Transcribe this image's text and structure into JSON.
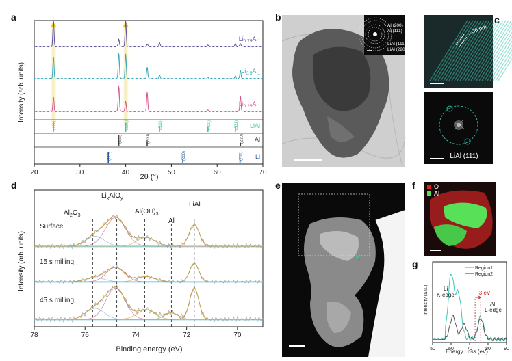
{
  "panel_letters": {
    "a": "a",
    "b": "b",
    "c": "c",
    "d": "d",
    "e": "e",
    "f": "f",
    "g": "g"
  },
  "colors": {
    "li075": "#5a4d9c",
    "li05": "#3aa6b6",
    "li025": "#d4548a",
    "lial_ref": "#45c2a9",
    "al_ref": "#444444",
    "li_ref": "#2a5d9a",
    "highlight": "#f6e9a6",
    "xps_fit": "#c9a24a"
  },
  "chart_data": [
    {
      "id": "a",
      "type": "line",
      "title": "",
      "xlabel": "2θ (°)",
      "ylabel": "Intensity (arb. units)",
      "xlim": [
        20,
        70
      ],
      "xticks": [
        "20",
        "30",
        "40",
        "50",
        "60",
        "70"
      ],
      "series": [
        {
          "name": "Li0.75Al",
          "label_main": "Li",
          "label_sub": "0.75",
          "label_main2": "Al",
          "label_sub2": "1",
          "peaks": [
            [
              24.2,
              1.0
            ],
            [
              38.5,
              0.3
            ],
            [
              40.0,
              1.0
            ],
            [
              44.7,
              0.1
            ],
            [
              47.4,
              0.14
            ],
            [
              58.0,
              0.05
            ],
            [
              64.0,
              0.1
            ],
            [
              65.1,
              0.12
            ]
          ]
        },
        {
          "name": "Li0.5Al",
          "label_main": "Li",
          "label_sub": "0.5",
          "label_main2": "Al",
          "label_sub2": "1",
          "peaks": [
            [
              24.2,
              0.85
            ],
            [
              38.5,
              1.0
            ],
            [
              40.0,
              0.95
            ],
            [
              44.7,
              0.45
            ],
            [
              47.4,
              0.14
            ],
            [
              58.0,
              0.05
            ],
            [
              64.0,
              0.1
            ],
            [
              65.1,
              0.32
            ]
          ]
        },
        {
          "name": "Li0.25Al",
          "label_main": "Li",
          "label_sub": "0.25",
          "label_main2": "Al",
          "label_sub2": "1",
          "peaks": [
            [
              24.2,
              0.55
            ],
            [
              38.5,
              1.0
            ],
            [
              40.0,
              0.4
            ],
            [
              44.7,
              0.75
            ],
            [
              58.0,
              0.05
            ],
            [
              65.1,
              0.6
            ]
          ]
        }
      ],
      "references": [
        {
          "name": "LiAl",
          "sticks": [
            [
              24.2,
              1.0,
              "(111)"
            ],
            [
              40.0,
              0.9,
              "(220)"
            ],
            [
              47.4,
              0.55,
              "(311)"
            ],
            [
              58.0,
              0.5,
              "(400)"
            ],
            [
              64.0,
              0.6,
              "(331)"
            ]
          ]
        },
        {
          "name": "Al",
          "sticks": [
            [
              38.5,
              1.0,
              "(111)"
            ],
            [
              44.7,
              0.45,
              "(200)"
            ],
            [
              65.1,
              0.3,
              "(220)"
            ]
          ]
        },
        {
          "name": "Li",
          "sticks": [
            [
              36.2,
              1.0,
              "(110)"
            ],
            [
              52.5,
              0.35,
              "(200)"
            ],
            [
              65.0,
              0.3,
              "(211)"
            ]
          ]
        }
      ],
      "highlight_x": [
        24.2,
        40.0
      ]
    },
    {
      "id": "d",
      "type": "line",
      "title": "",
      "xlabel": "Binding energy (eV)",
      "ylabel": "Intensity (arb. units)",
      "xlim": [
        78,
        69
      ],
      "xticks": [
        "78",
        "76",
        "74",
        "72",
        "70"
      ],
      "series": [
        {
          "name": "Surface",
          "components": [
            [
              75.6,
              0.35,
              0.8
            ],
            [
              74.8,
              1.0,
              0.9
            ],
            [
              73.6,
              0.3,
              0.8
            ],
            [
              71.7,
              0.75,
              0.45
            ]
          ]
        },
        {
          "name": "15 s milling",
          "components": [
            [
              75.6,
              0.2,
              0.8
            ],
            [
              74.8,
              0.7,
              0.8
            ],
            [
              73.6,
              0.25,
              0.8
            ],
            [
              71.7,
              0.9,
              0.4
            ]
          ]
        },
        {
          "name": "45 s milling",
          "components": [
            [
              75.6,
              0.35,
              0.8
            ],
            [
              74.8,
              1.0,
              0.85
            ],
            [
              73.6,
              0.3,
              0.8
            ],
            [
              72.6,
              0.2,
              0.6
            ],
            [
              71.7,
              1.0,
              0.4
            ]
          ]
        }
      ],
      "ref_lines": [
        {
          "x": 75.7,
          "label": "Al2O3"
        },
        {
          "x": 74.75,
          "label": "LixAlOy"
        },
        {
          "x": 73.65,
          "label": "Al(OH)3"
        },
        {
          "x": 72.6,
          "label": "Al"
        },
        {
          "x": 71.7,
          "label": "LiAl"
        }
      ]
    },
    {
      "id": "g",
      "type": "line",
      "title": "",
      "xlabel": "Energy Loss (eV)",
      "ylabel": "Intensity (a.u.)",
      "xlim": [
        50,
        90
      ],
      "xticks": [
        "50",
        "60",
        "70",
        "80",
        "90"
      ],
      "series": [
        {
          "name": "Region1",
          "peaks": [
            [
              60,
              1.0
            ],
            [
              64,
              0.7
            ],
            [
              76,
              0.35
            ]
          ]
        },
        {
          "name": "Region2",
          "peaks": [
            [
              61,
              0.55
            ],
            [
              67,
              0.35
            ],
            [
              76,
              0.5
            ]
          ]
        }
      ],
      "legend": [
        "Region1",
        "Region2"
      ]
    }
  ],
  "xrd": {
    "lial_tag": "LiAl",
    "al_tag": "Al",
    "li_tag": "Li"
  },
  "xps_labels": {
    "al2o3_main": "Al",
    "al2o3_sub1": "2",
    "al2o3_mid": "O",
    "al2o3_sub2": "3",
    "lixaloy_main": "Li",
    "lixaloy_subx": "x",
    "lixaloy_mid": "AlO",
    "lixaloy_suby": "y",
    "aloh3_main": "Al(OH)",
    "aloh3_sub": "3",
    "al": "Al",
    "lial": "LiAl"
  },
  "tem": {
    "saed_labels": [
      "Al (200)",
      "Al (111)",
      "LiAl (111)",
      "LiAl (220)"
    ]
  },
  "hrtem": {
    "spacing": "0.36 nm",
    "fft_label": "LiAl (111)"
  },
  "edx": {
    "legend": [
      {
        "label": "O",
        "color": "#e02020"
      },
      {
        "label": "Al",
        "color": "#55e055"
      }
    ]
  },
  "eels": {
    "li_edge_1": "Li",
    "li_edge_2": "K-edge",
    "al_edge_1": "Al",
    "al_edge_2": "L-edge",
    "shift": "3 eV"
  }
}
